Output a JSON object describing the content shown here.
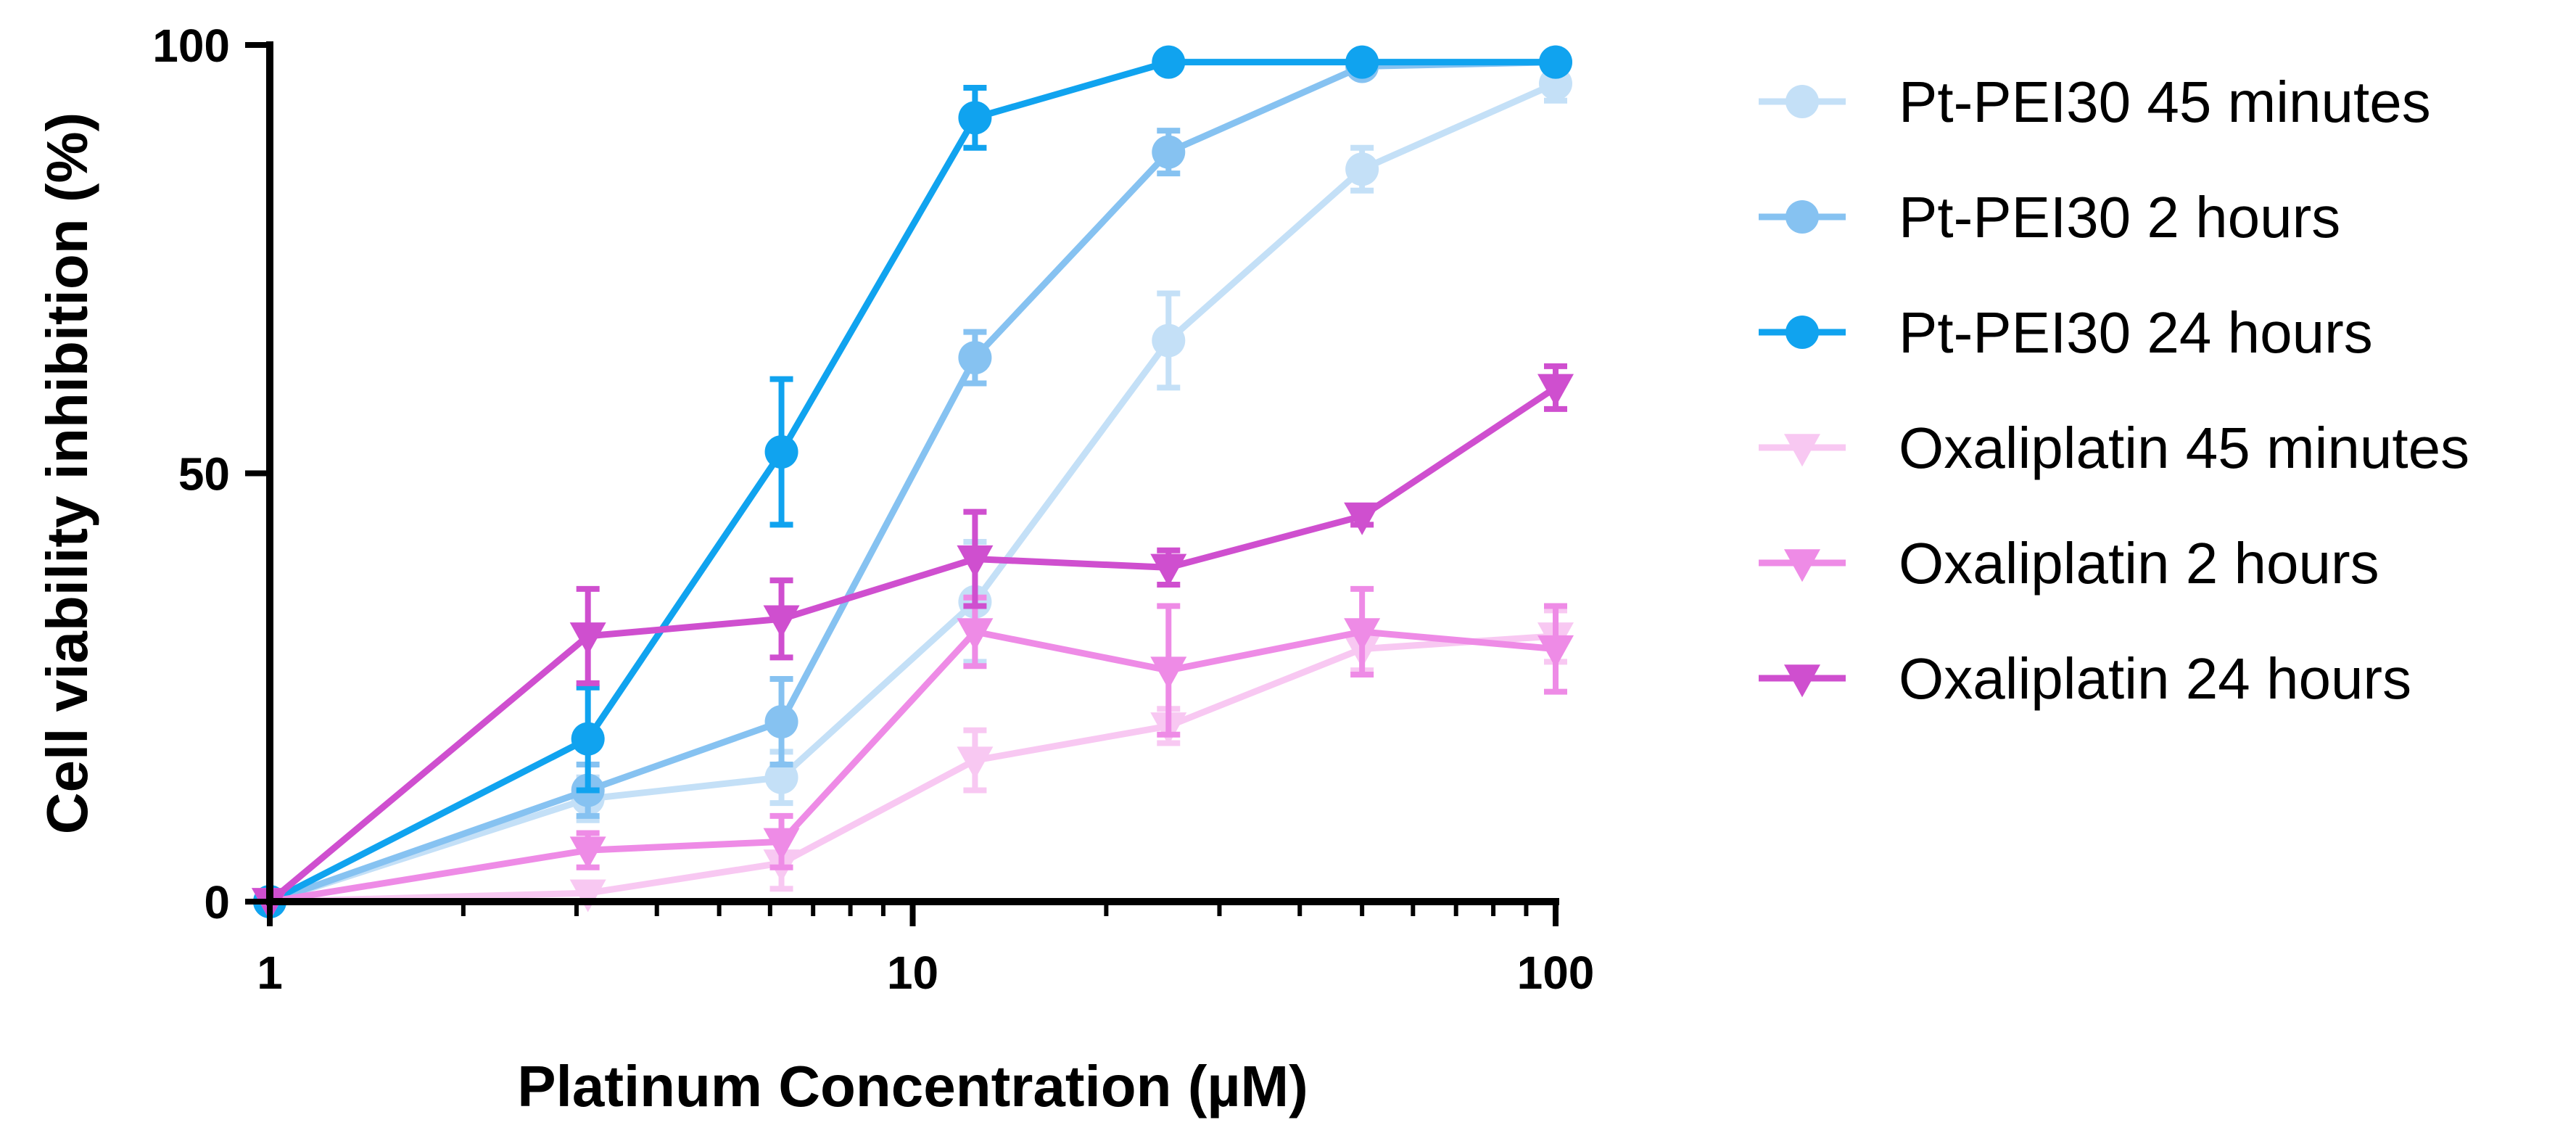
{
  "chart_data": {
    "type": "line",
    "title": "",
    "xlabel": "Platinum Concentration (µM)",
    "ylabel": "Cell viability inhibition (%)",
    "xscale": "log",
    "xlim": [
      1,
      100
    ],
    "ylim": [
      0,
      100
    ],
    "x_tick_labels": [
      "1",
      "10",
      "100"
    ],
    "x_tick_values": [
      1,
      10,
      100
    ],
    "y_tick_labels": [
      "0",
      "50",
      "100"
    ],
    "y_tick_values": [
      0,
      50,
      100
    ],
    "grid": false,
    "legend_position": "right",
    "x": [
      1,
      3.125,
      6.25,
      12.5,
      25,
      50,
      100
    ],
    "series": [
      {
        "name": "Pt-PEI30 45 minutes",
        "marker": "circle",
        "color": "#c4e0f7",
        "values": [
          0,
          12,
          14.5,
          35,
          65.5,
          85.5,
          95.5
        ],
        "errors": [
          0,
          2.5,
          3,
          7,
          5.5,
          2.5,
          2
        ]
      },
      {
        "name": "Pt-PEI30 2 hours",
        "marker": "circle",
        "color": "#86c2f1",
        "values": [
          0,
          13,
          21,
          63.5,
          87.5,
          97.5,
          98
        ],
        "errors": [
          0,
          3,
          5,
          3,
          2.5,
          1,
          1
        ]
      },
      {
        "name": "Pt-PEI30 24 hours",
        "marker": "circle",
        "color": "#10a3ef",
        "values": [
          0,
          19,
          52.5,
          91.5,
          98,
          98,
          98
        ],
        "errors": [
          0,
          6,
          8.5,
          3.5,
          1,
          1,
          1
        ]
      },
      {
        "name": "Oxaliplatin 45 minutes",
        "marker": "triangle-down",
        "color": "#f8c8f2",
        "values": [
          0,
          1,
          4.5,
          16.5,
          20.5,
          29.5,
          31
        ],
        "errors": [
          0,
          1,
          3,
          3.5,
          2,
          2.5,
          3
        ]
      },
      {
        "name": "Oxaliplatin 2 hours",
        "marker": "triangle-down",
        "color": "#ee8be6",
        "values": [
          0,
          6,
          7,
          31.5,
          27,
          31.5,
          29.5
        ],
        "errors": [
          0,
          2,
          3,
          4,
          7.5,
          5,
          5
        ]
      },
      {
        "name": "Oxaliplatin 24 hours",
        "marker": "triangle-down",
        "color": "#cf4fcf",
        "values": [
          0,
          31,
          33,
          40,
          39,
          45,
          60
        ],
        "errors": [
          0,
          5.5,
          4.5,
          5.5,
          2,
          1,
          2.5
        ]
      }
    ]
  }
}
